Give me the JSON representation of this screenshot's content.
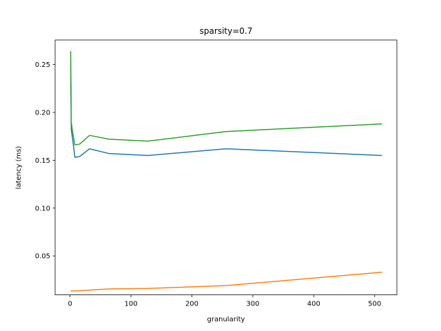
{
  "chart_data": {
    "type": "line",
    "title": "sparsity=0.7",
    "xlabel": "granularity",
    "ylabel": "latency (ms)",
    "xlim": [
      -24.5,
      536.5
    ],
    "ylim": [
      0.0093,
      0.2757
    ],
    "xticks": [
      0,
      100,
      200,
      300,
      400,
      500
    ],
    "yticks": [
      0.05,
      0.1,
      0.15,
      0.2,
      0.25
    ],
    "ytick_labels": [
      "0.05",
      "0.10",
      "0.15",
      "0.20",
      "0.25"
    ],
    "grid": false,
    "legend": "none",
    "x": [
      1,
      2,
      4,
      8,
      16,
      32,
      64,
      128,
      256,
      512
    ],
    "series": [
      {
        "color": "#1f77b4",
        "values": [
          0.25,
          0.182,
          0.173,
          0.153,
          0.154,
          0.162,
          0.157,
          0.155,
          0.162,
          0.155
        ]
      },
      {
        "color": "#ff7f0e",
        "values": [
          0.0135,
          0.0134,
          0.0133,
          0.0134,
          0.0136,
          0.0143,
          0.0155,
          0.016,
          0.019,
          0.033
        ]
      },
      {
        "color": "#2ca02c",
        "values": [
          0.264,
          0.19,
          0.18,
          0.166,
          0.167,
          0.176,
          0.172,
          0.17,
          0.18,
          0.188
        ]
      }
    ]
  }
}
